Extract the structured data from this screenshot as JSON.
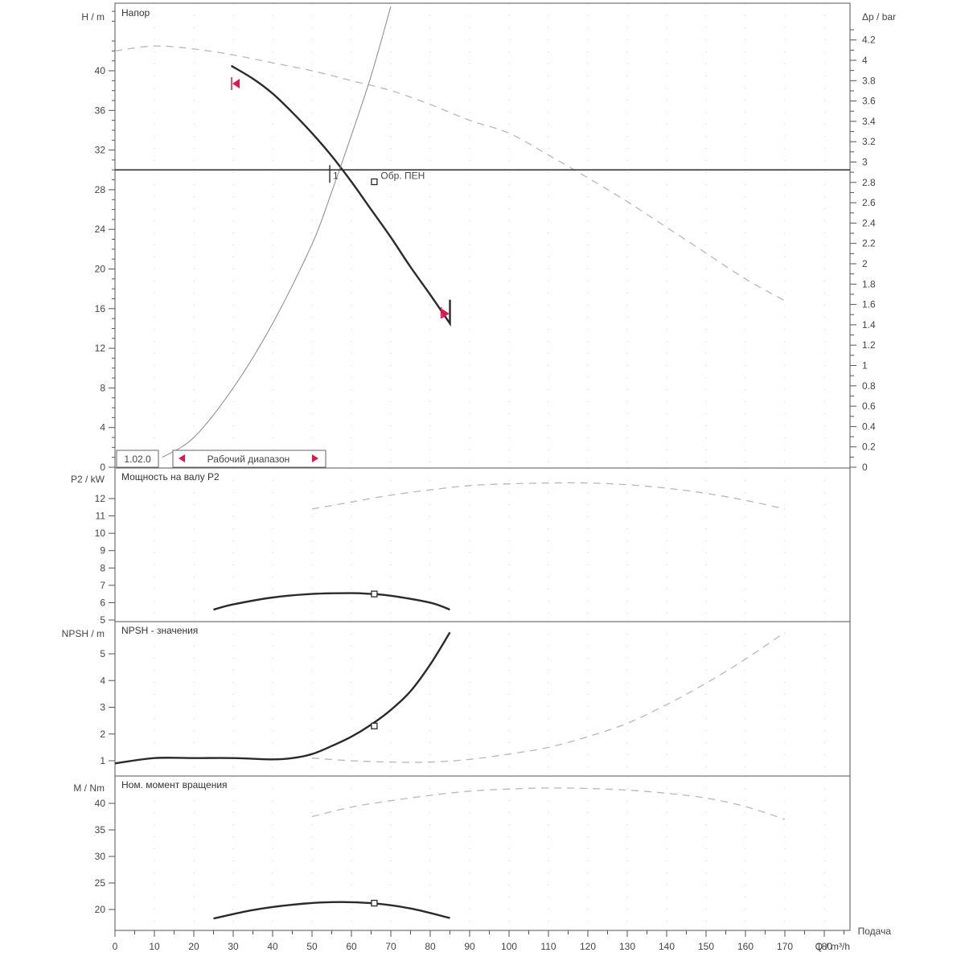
{
  "chart_data": {
    "type": "line",
    "x_axis": {
      "label": "Q / m³/h",
      "range": [
        0,
        186
      ],
      "ticks": [
        0,
        10,
        20,
        30,
        40,
        50,
        60,
        70,
        80,
        90,
        100,
        110,
        120,
        130,
        140,
        150,
        160,
        170,
        180
      ]
    },
    "footer_label": "Подача",
    "panels": [
      {
        "id": "head",
        "title": "Напор",
        "y_label": "H / m",
        "y_range": [
          0,
          46.5
        ],
        "y_ticks": [
          0,
          4,
          8,
          12,
          16,
          20,
          24,
          28,
          32,
          36,
          40
        ],
        "y2_label": "Δp / bar",
        "y2_range": [
          0,
          4.56
        ],
        "y2_ticks": [
          "0",
          "0.2",
          "0.4",
          "0.6",
          "0.8",
          "1",
          "1.2",
          "1.4",
          "1.6",
          "1.8",
          "2",
          "2.2",
          "2.4",
          "2.6",
          "2.8",
          "3",
          "3.2",
          "3.4",
          "3.6",
          "3.8",
          "4",
          "4.2"
        ],
        "series": [
          {
            "style": "solid",
            "x": [
              29.5,
              35,
              40,
              45,
              50,
              55,
              60,
              65,
              70,
              75,
              80,
              85,
              85
            ],
            "y": [
              40.5,
              39.2,
              37.7,
              35.8,
              33.7,
              31.4,
              28.8,
              26.0,
              23.2,
              20.2,
              17.4,
              14.5,
              16.9
            ]
          },
          {
            "style": "dashed",
            "x": [
              0,
              10,
              20,
              30,
              40,
              50,
              60,
              70,
              80,
              90,
              100,
              110,
              120,
              130,
              140,
              150,
              160,
              170
            ],
            "y": [
              42.0,
              42.5,
              42.2,
              41.6,
              40.8,
              40.0,
              39.0,
              38.0,
              36.6,
              35.0,
              33.7,
              31.5,
              29.2,
              26.8,
              24.2,
              21.6,
              19.0,
              16.8
            ]
          },
          {
            "style": "system",
            "x": [
              12,
              20,
              30,
              40,
              50,
              55,
              60,
              65,
              70
            ],
            "y": [
              1.0,
              3.0,
              8.0,
              14.5,
              22.5,
              27.8,
              33.5,
              39.5,
              46.5
            ]
          }
        ],
        "hline_y": 30,
        "operating_point": {
          "x": 65.8,
          "y": 28.8
        },
        "intersection_label": "1",
        "operating_label": "Обр. ПЕН",
        "range_limits": {
          "min_x": 30,
          "max_x": 84
        },
        "legend_left": "1.02.0",
        "legend_right": "Рабочий диапазон"
      },
      {
        "id": "power",
        "title": "Мощность на валу P2",
        "y_label": "P2 / kW",
        "y_range": [
          5,
          13.7
        ],
        "y_ticks": [
          5,
          6,
          7,
          8,
          9,
          10,
          11,
          12
        ],
        "series": [
          {
            "style": "solid",
            "x": [
              25,
              30,
              40,
              50,
              60,
              65,
              70,
              80,
              85
            ],
            "y": [
              5.6,
              5.9,
              6.3,
              6.5,
              6.55,
              6.5,
              6.4,
              6.0,
              5.6
            ]
          },
          {
            "style": "dashed",
            "x": [
              50,
              60,
              70,
              80,
              90,
              100,
              110,
              120,
              130,
              140,
              150,
              160,
              170
            ],
            "y": [
              11.4,
              11.8,
              12.2,
              12.5,
              12.75,
              12.85,
              12.9,
              12.9,
              12.8,
              12.6,
              12.3,
              11.9,
              11.4
            ]
          }
        ],
        "operating_point": {
          "x": 65.8,
          "y": 6.5
        }
      },
      {
        "id": "npsh",
        "title": "NPSH - значения",
        "y_label": "NPSH / m",
        "y_range": [
          0.6,
          6.4
        ],
        "y_ticks": [
          1,
          2,
          3,
          4,
          5
        ],
        "series": [
          {
            "style": "solid",
            "x": [
              0,
              10,
              20,
              30,
              40,
              45,
              50,
              55,
              60,
              65,
              70,
              75,
              80,
              85
            ],
            "y": [
              0.9,
              1.1,
              1.1,
              1.1,
              1.05,
              1.1,
              1.25,
              1.55,
              1.9,
              2.35,
              2.9,
              3.6,
              4.6,
              5.8
            ]
          },
          {
            "style": "dashed",
            "x": [
              50,
              60,
              70,
              80,
              90,
              100,
              110,
              120,
              130,
              140,
              150,
              160,
              170
            ],
            "y": [
              1.1,
              1.0,
              0.95,
              0.95,
              1.05,
              1.25,
              1.5,
              1.9,
              2.4,
              3.1,
              3.9,
              4.8,
              5.8
            ]
          }
        ],
        "operating_point": {
          "x": 65.8,
          "y": 2.3
        }
      },
      {
        "id": "torque",
        "title": "Ном. момент вращения",
        "y_label": "M / Nm",
        "y_range": [
          16,
          45.5
        ],
        "y_ticks": [
          20,
          25,
          30,
          35,
          40
        ],
        "series": [
          {
            "style": "solid",
            "x": [
              25,
              35,
              45,
              55,
              65,
              75,
              85
            ],
            "y": [
              18.3,
              19.9,
              20.9,
              21.4,
              21.2,
              20.2,
              18.4
            ]
          },
          {
            "style": "dashed",
            "x": [
              50,
              60,
              70,
              80,
              90,
              100,
              110,
              120,
              130,
              140,
              150,
              160,
              170
            ],
            "y": [
              37.5,
              39.3,
              40.5,
              41.5,
              42.3,
              42.7,
              42.9,
              42.8,
              42.5,
              41.9,
              41.0,
              39.4,
              37.0
            ]
          }
        ],
        "operating_point": {
          "x": 65.8,
          "y": 21.2
        }
      }
    ],
    "colors": {
      "solid": "#2a2a2a",
      "dashed": "#b8b8b8",
      "system": "#888888",
      "frame": "#555555",
      "grid": "#cccccc",
      "accent": "#e0174f"
    }
  }
}
